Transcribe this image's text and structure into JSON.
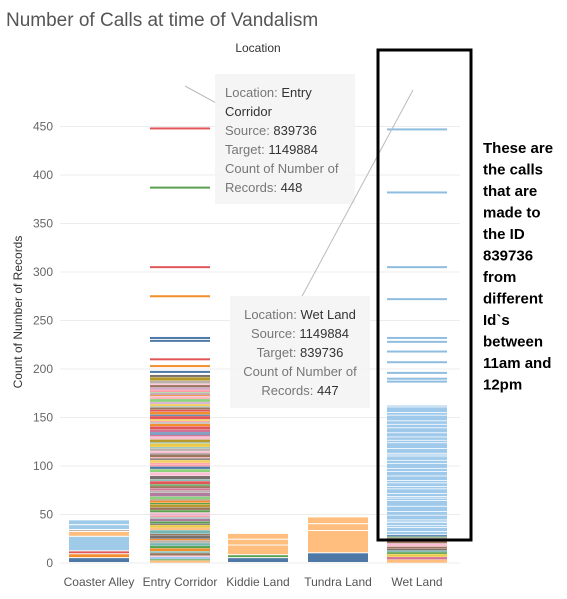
{
  "chart_data": {
    "type": "bar",
    "title": "Number of Calls at time of Vandalism",
    "column_header": "Location",
    "xlabel": "",
    "ylabel": "Count of Number of Records",
    "ylim": [
      0,
      460
    ],
    "yticks": [
      0,
      50,
      100,
      150,
      200,
      250,
      300,
      350,
      400,
      450
    ],
    "grid": true,
    "categories": [
      "Coaster Alley",
      "Entry Corridor",
      "Kiddie Land",
      "Tundra Land",
      "Wet Land"
    ],
    "stacks": [
      {
        "category": "Coaster Alley",
        "total": 44,
        "segments": [
          {
            "value": 5,
            "color": "#4e79a7"
          },
          {
            "value": 4,
            "color": "#f28e2b"
          },
          {
            "value": 3,
            "color": "#e15759"
          },
          {
            "value": 15,
            "color": "#a0cbe8"
          },
          {
            "value": 5,
            "color": "#ffbe7d"
          },
          {
            "value": 2,
            "color": "#bab0ac"
          },
          {
            "value": 5,
            "color": "#a0cbe8"
          },
          {
            "value": 5,
            "color": "#a0cbe8"
          }
        ]
      },
      {
        "category": "Entry Corridor",
        "total": 448,
        "segments": [
          {
            "value": 448,
            "color": "mixed"
          }
        ]
      },
      {
        "category": "Kiddie Land",
        "total": 30,
        "segments": [
          {
            "value": 5,
            "color": "#4e79a7"
          },
          {
            "value": 3,
            "color": "#59a14f"
          },
          {
            "value": 10,
            "color": "#ffbe7d"
          },
          {
            "value": 6,
            "color": "#ffbe7d"
          },
          {
            "value": 6,
            "color": "#ffbe7d"
          }
        ]
      },
      {
        "category": "Tundra Land",
        "total": 47,
        "segments": [
          {
            "value": 10,
            "color": "#4e79a7"
          },
          {
            "value": 23,
            "color": "#ffbe7d"
          },
          {
            "value": 7,
            "color": "#ffbe7d"
          },
          {
            "value": 7,
            "color": "#ffbe7d"
          }
        ]
      },
      {
        "category": "Wet Land",
        "total": 447,
        "segments": [
          {
            "value": 447,
            "color": "mixed"
          }
        ]
      }
    ],
    "entry_corridor_lines": [
      {
        "value": 448,
        "color": "#e15759"
      },
      {
        "value": 387,
        "color": "#59a14f"
      },
      {
        "value": 305,
        "color": "#e15759"
      },
      {
        "value": 275,
        "color": "#f28e2b"
      },
      {
        "value": 232,
        "color": "#4e79a7"
      },
      {
        "value": 229,
        "color": "#4e79a7"
      },
      {
        "value": 210,
        "color": "#e15759"
      },
      {
        "value": 203,
        "color": "#f28e2b"
      },
      {
        "value": 197,
        "color": "#4e79a7"
      }
    ],
    "wet_land_lines": [
      447,
      382,
      305,
      272,
      232,
      228,
      218,
      207,
      196,
      190,
      187
    ],
    "tooltips": [
      {
        "rows": [
          {
            "key": "Location:",
            "value": "Entry"
          },
          {
            "key": "",
            "value": "Corridor"
          },
          {
            "key": "Source:",
            "value": "839736"
          },
          {
            "key": "Target:",
            "value": "1149884"
          },
          {
            "key": "Count of Number of",
            "value": ""
          },
          {
            "key": "Records:",
            "value": "448"
          }
        ]
      },
      {
        "rows": [
          {
            "key": "Location:",
            "value": "Wet Land"
          },
          {
            "key": "Source:",
            "value": "1149884"
          },
          {
            "key": "Target:",
            "value": "839736"
          },
          {
            "key": "Count of Number of",
            "value": ""
          },
          {
            "key": "Records:",
            "value": "447"
          }
        ]
      }
    ],
    "annotation": {
      "lines": [
        "These are",
        "the calls",
        "that are",
        "made to",
        "the ID",
        "839736",
        "from",
        "different",
        "Id`s",
        "between",
        "11am and",
        "12pm"
      ]
    }
  }
}
